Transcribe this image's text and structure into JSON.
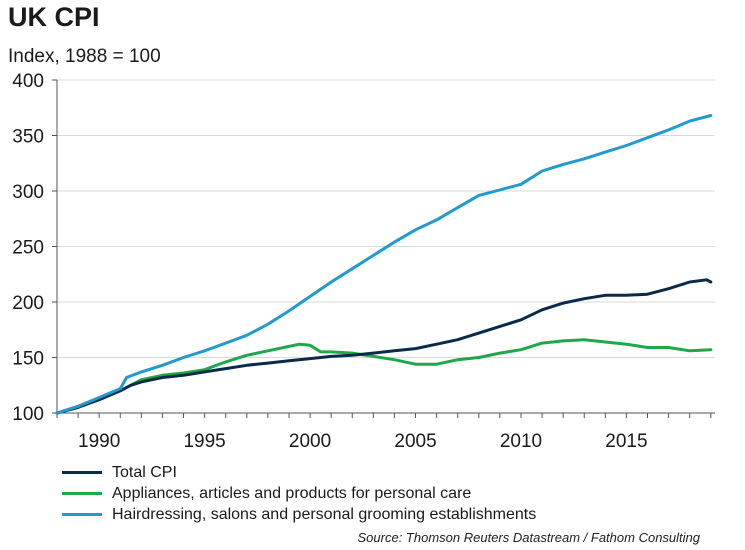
{
  "chart_data": {
    "type": "line",
    "title": "UK CPI",
    "subtitle": "Index, 1988 = 100",
    "xlabel": "",
    "ylabel": "",
    "xlim": [
      1988,
      2019.2
    ],
    "ylim": [
      100,
      400
    ],
    "xticks": [
      1990,
      1995,
      2000,
      2005,
      2010,
      2015
    ],
    "yticks": [
      100,
      150,
      200,
      250,
      300,
      350,
      400
    ],
    "grid": true,
    "legend_position": "bottom",
    "series": [
      {
        "name": "Total CPI",
        "color": "#0b2a4a",
        "points": [
          [
            1988,
            100
          ],
          [
            1989,
            105
          ],
          [
            1990,
            112
          ],
          [
            1991,
            120
          ],
          [
            1991.5,
            125
          ],
          [
            1992,
            128
          ],
          [
            1993,
            132
          ],
          [
            1994,
            134
          ],
          [
            1995,
            137
          ],
          [
            1996,
            140
          ],
          [
            1997,
            143
          ],
          [
            1998,
            145
          ],
          [
            1999,
            147
          ],
          [
            2000,
            149
          ],
          [
            2001,
            151
          ],
          [
            2002,
            152
          ],
          [
            2003,
            154
          ],
          [
            2004,
            156
          ],
          [
            2005,
            158
          ],
          [
            2006,
            162
          ],
          [
            2007,
            166
          ],
          [
            2008,
            172
          ],
          [
            2009,
            178
          ],
          [
            2010,
            184
          ],
          [
            2011,
            193
          ],
          [
            2012,
            199
          ],
          [
            2013,
            203
          ],
          [
            2014,
            206
          ],
          [
            2015,
            206
          ],
          [
            2016,
            207
          ],
          [
            2017,
            212
          ],
          [
            2018,
            218
          ],
          [
            2018.8,
            220
          ],
          [
            2019,
            218
          ]
        ]
      },
      {
        "name": "Appliances, articles and products for personal care",
        "color": "#1ea84a",
        "points": [
          [
            1988,
            100
          ],
          [
            1989,
            106
          ],
          [
            1990,
            113
          ],
          [
            1991,
            120
          ],
          [
            1991.7,
            127
          ],
          [
            1992,
            130
          ],
          [
            1993,
            134
          ],
          [
            1994,
            136
          ],
          [
            1995,
            139
          ],
          [
            1996,
            146
          ],
          [
            1997,
            152
          ],
          [
            1998,
            156
          ],
          [
            1999,
            160
          ],
          [
            1999.5,
            162
          ],
          [
            2000,
            161
          ],
          [
            2000.5,
            155
          ],
          [
            2001,
            155
          ],
          [
            2002,
            154
          ],
          [
            2003,
            151
          ],
          [
            2004,
            148
          ],
          [
            2005,
            144
          ],
          [
            2006,
            144
          ],
          [
            2007,
            148
          ],
          [
            2008,
            150
          ],
          [
            2009,
            154
          ],
          [
            2010,
            157
          ],
          [
            2011,
            163
          ],
          [
            2012,
            165
          ],
          [
            2013,
            166
          ],
          [
            2014,
            164
          ],
          [
            2015,
            162
          ],
          [
            2016,
            159
          ],
          [
            2017,
            159
          ],
          [
            2018,
            156
          ],
          [
            2019,
            157
          ]
        ]
      },
      {
        "name": "Hairdressing, salons and personal grooming establishments",
        "color": "#1f9bd1",
        "points": [
          [
            1988,
            100
          ],
          [
            1989,
            106
          ],
          [
            1990,
            114
          ],
          [
            1991,
            122
          ],
          [
            1991.3,
            132
          ],
          [
            1992,
            137
          ],
          [
            1993,
            143
          ],
          [
            1994,
            150
          ],
          [
            1995,
            156
          ],
          [
            1996,
            163
          ],
          [
            1997,
            170
          ],
          [
            1998,
            180
          ],
          [
            1999,
            192
          ],
          [
            2000,
            205
          ],
          [
            2001,
            218
          ],
          [
            2002,
            230
          ],
          [
            2003,
            242
          ],
          [
            2004,
            254
          ],
          [
            2005,
            265
          ],
          [
            2006,
            274
          ],
          [
            2007,
            285
          ],
          [
            2008,
            296
          ],
          [
            2009,
            301
          ],
          [
            2010,
            306
          ],
          [
            2011,
            318
          ],
          [
            2012,
            324
          ],
          [
            2013,
            329
          ],
          [
            2014,
            335
          ],
          [
            2015,
            341
          ],
          [
            2016,
            348
          ],
          [
            2017,
            355
          ],
          [
            2018,
            363
          ],
          [
            2019,
            368
          ]
        ]
      }
    ]
  },
  "source": "Source: Thomson Reuters Datastream / Fathom Consulting"
}
